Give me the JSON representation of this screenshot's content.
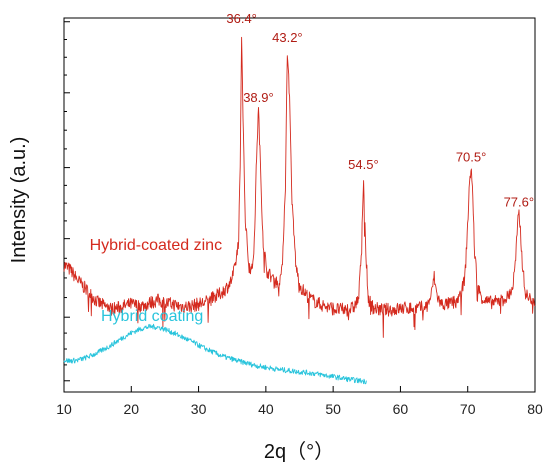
{
  "chart_data": {
    "type": "line",
    "xlabel": "2q（°）",
    "ylabel": "Intensity (a.u.)",
    "xlim": [
      10,
      80
    ],
    "xticks": [
      10,
      20,
      30,
      40,
      50,
      60,
      70,
      80
    ],
    "ylim": [
      0,
      100
    ],
    "y_major_ticks": [
      3,
      20,
      41,
      60,
      80,
      99
    ],
    "grid": false,
    "legend": "none",
    "peak_labels": [
      {
        "x": 36.4,
        "y": 97,
        "text": "36.4°"
      },
      {
        "x": 38.9,
        "y": 76,
        "text": "38.9°"
      },
      {
        "x": 43.2,
        "y": 92,
        "text": "43.2°"
      },
      {
        "x": 54.5,
        "y": 58,
        "text": "54.5°"
      },
      {
        "x": 70.5,
        "y": 60,
        "text": "70.5°"
      },
      {
        "x": 77.6,
        "y": 48,
        "text": "77.6°"
      }
    ],
    "series": [
      {
        "name": "Hybrid-coated zinc",
        "label_at": {
          "x": 13.8,
          "y": 38
        },
        "color": "#d42a1e",
        "x": [
          10,
          11,
          12,
          13,
          14,
          15,
          16,
          17,
          18,
          19,
          20,
          21,
          22,
          23,
          24,
          25,
          26,
          27,
          28,
          29,
          30,
          31,
          32,
          33,
          34,
          34.8,
          35.4,
          35.9,
          36.2,
          36.4,
          36.6,
          36.9,
          37.4,
          37.9,
          38.3,
          38.6,
          38.9,
          39.2,
          39.6,
          40.2,
          41,
          41.8,
          42.4,
          42.9,
          43.2,
          43.5,
          43.9,
          44.5,
          45.2,
          46,
          47,
          48,
          49,
          50,
          51,
          52,
          53,
          53.8,
          54.2,
          54.5,
          54.8,
          55.2,
          56,
          57,
          58,
          59,
          60,
          61,
          62,
          63,
          64,
          64.6,
          65,
          65.4,
          66,
          67,
          68,
          69,
          69.6,
          70,
          70.3,
          70.5,
          70.7,
          71,
          71.5,
          72.2,
          73,
          74,
          75,
          76,
          76.7,
          77.1,
          77.4,
          77.6,
          77.8,
          78.1,
          78.5,
          79,
          79.5,
          80
        ],
        "y": [
          34,
          32.5,
          30,
          28,
          26,
          24,
          23,
          22.2,
          22.5,
          23,
          23.5,
          23,
          23.2,
          24,
          24.5,
          23.8,
          23.5,
          23,
          22.8,
          23,
          23.5,
          24,
          25,
          26,
          27.5,
          29.5,
          33,
          40,
          60,
          97,
          75,
          48,
          35,
          32,
          40,
          62,
          76,
          60,
          40,
          32,
          30.5,
          29,
          32,
          55,
          92,
          80,
          50,
          33,
          28,
          26,
          24.5,
          23.5,
          22.8,
          22.3,
          22,
          22,
          22.5,
          25,
          38,
          58,
          40,
          25,
          22.5,
          22,
          22,
          22,
          22.3,
          22.5,
          22.3,
          22.5,
          23,
          26,
          31,
          26,
          23.5,
          23.5,
          24,
          26,
          31,
          45,
          57,
          60,
          55,
          38,
          28,
          25,
          24,
          24,
          24.5,
          25.5,
          28,
          35,
          44,
          48,
          44,
          35,
          27,
          25,
          25,
          24.5
        ]
      },
      {
        "name": "Hybrid coating",
        "label_at": {
          "x": 15.5,
          "y": 19
        },
        "color": "#29c4dc",
        "x": [
          10,
          11,
          12,
          13,
          14,
          15,
          16,
          17,
          18,
          19,
          20,
          21,
          22,
          23,
          24,
          25,
          26,
          27,
          28,
          29,
          30,
          31,
          32,
          33,
          34,
          35,
          36,
          37,
          38,
          39,
          40,
          41,
          42,
          43,
          44,
          45,
          46,
          47,
          48,
          49,
          50,
          51,
          52,
          53,
          54,
          55
        ],
        "y": [
          8.5,
          8.3,
          8.5,
          9,
          9.7,
          10.5,
          11.5,
          12.5,
          13.7,
          14.8,
          15.8,
          16.6,
          17.2,
          17.5,
          17.3,
          16.8,
          16,
          15.2,
          14.3,
          13.5,
          12.5,
          11.6,
          10.8,
          10,
          9.3,
          8.8,
          8.2,
          7.8,
          7.3,
          6.9,
          6.6,
          6.3,
          6,
          5.8,
          5.6,
          5.4,
          5.2,
          5,
          4.7,
          4.4,
          4.1,
          3.8,
          3.5,
          3.2,
          3,
          2.8
        ]
      }
    ]
  }
}
